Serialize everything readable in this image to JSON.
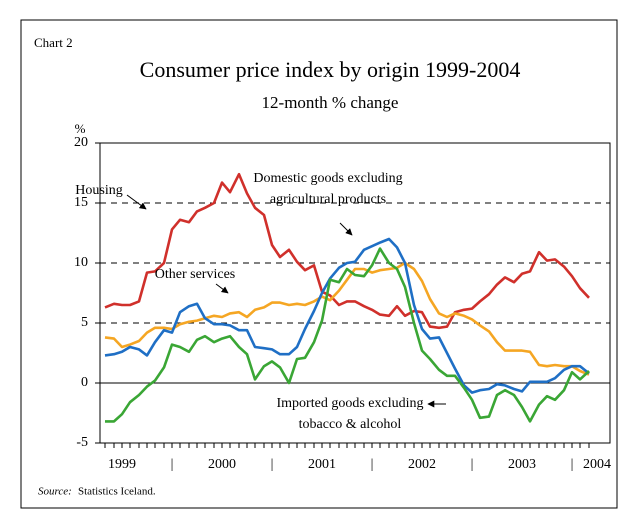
{
  "chart_data": {
    "type": "line",
    "chart_label": "Chart 2",
    "title": "Consumer price index by origin 1999-2004",
    "subtitle": "12-month % change",
    "y_label": "%",
    "source_label": "Source:",
    "source": "Statistics Iceland.",
    "xlim": [
      1999.28,
      2004.38
    ],
    "ylim": [
      -5,
      20
    ],
    "yticks": [
      -5,
      0,
      5,
      10,
      15,
      20
    ],
    "grid": true,
    "xticks": [
      {
        "value": 1999.5,
        "label": "1999"
      },
      {
        "value": 2000,
        "label": "|"
      },
      {
        "value": 2000.5,
        "label": "2000"
      },
      {
        "value": 2001,
        "label": "|"
      },
      {
        "value": 2001.5,
        "label": "2001"
      },
      {
        "value": 2002,
        "label": "|"
      },
      {
        "value": 2002.5,
        "label": "2002"
      },
      {
        "value": 2003,
        "label": "|"
      },
      {
        "value": 2003.5,
        "label": "2003"
      },
      {
        "value": 2004,
        "label": "|"
      },
      {
        "value": 2004.25,
        "label": "2004"
      }
    ],
    "x": [
      1999.33,
      1999.42,
      1999.5,
      1999.58,
      1999.67,
      1999.75,
      1999.83,
      1999.92,
      2000.0,
      2000.08,
      2000.17,
      2000.25,
      2000.33,
      2000.42,
      2000.5,
      2000.58,
      2000.67,
      2000.75,
      2000.83,
      2000.92,
      2001.0,
      2001.08,
      2001.17,
      2001.25,
      2001.33,
      2001.42,
      2001.5,
      2001.58,
      2001.67,
      2001.75,
      2001.83,
      2001.92,
      2002.0,
      2002.08,
      2002.17,
      2002.25,
      2002.33,
      2002.42,
      2002.5,
      2002.58,
      2002.67,
      2002.75,
      2002.83,
      2002.92,
      2003.0,
      2003.08,
      2003.17,
      2003.25,
      2003.33,
      2003.42,
      2003.5,
      2003.58,
      2003.67,
      2003.75,
      2003.83,
      2003.92,
      2004.0,
      2004.08,
      2004.17
    ],
    "series": [
      {
        "name": "Housing",
        "color": "#d0302b",
        "values": [
          6.3,
          6.6,
          6.5,
          6.5,
          6.8,
          9.2,
          9.3,
          10.0,
          12.8,
          13.6,
          13.4,
          14.3,
          14.6,
          15.0,
          16.7,
          15.9,
          17.4,
          15.8,
          14.6,
          14.0,
          11.5,
          10.5,
          11.1,
          10.1,
          9.4,
          9.8,
          7.6,
          7.3,
          6.5,
          6.8,
          6.8,
          6.4,
          6.1,
          5.7,
          5.6,
          6.4,
          5.6,
          6.0,
          5.9,
          4.7,
          4.6,
          4.7,
          5.9,
          6.1,
          6.2,
          6.8,
          7.4,
          8.2,
          8.8,
          8.4,
          9.1,
          9.3,
          10.9,
          10.2,
          10.3,
          9.7,
          8.9,
          7.9,
          7.1
        ]
      },
      {
        "name": "Other services",
        "color": "#f5a623",
        "values": [
          3.8,
          3.7,
          3.0,
          3.2,
          3.5,
          4.2,
          4.6,
          4.6,
          4.5,
          4.9,
          5.1,
          5.2,
          5.4,
          5.6,
          5.5,
          5.8,
          5.9,
          5.5,
          6.1,
          6.3,
          6.7,
          6.7,
          6.5,
          6.6,
          6.5,
          6.8,
          7.2,
          6.9,
          7.7,
          8.6,
          9.5,
          9.5,
          9.2,
          9.4,
          9.5,
          9.6,
          10.0,
          9.5,
          8.5,
          7.0,
          5.8,
          5.5,
          5.8,
          5.6,
          5.3,
          4.8,
          4.3,
          3.4,
          2.7,
          2.7,
          2.7,
          2.6,
          1.5,
          1.4,
          1.5,
          1.4,
          1.4,
          1.0,
          0.7
        ]
      },
      {
        "name": "Domestic goods excluding agricultural products",
        "color": "#1f6fc5",
        "values": [
          2.3,
          2.4,
          2.6,
          3.0,
          2.8,
          2.3,
          3.4,
          4.4,
          4.2,
          5.9,
          6.4,
          6.6,
          5.4,
          4.9,
          4.9,
          4.8,
          4.4,
          4.4,
          3.0,
          2.9,
          2.8,
          2.4,
          2.4,
          3.0,
          4.5,
          6.0,
          7.5,
          8.7,
          9.6,
          10.0,
          10.1,
          11.1,
          11.4,
          11.7,
          12.0,
          11.3,
          10.0,
          6.5,
          4.5,
          3.7,
          3.8,
          2.5,
          1.2,
          -0.2,
          -0.8,
          -0.6,
          -0.5,
          -0.1,
          -0.2,
          -0.5,
          -0.7,
          0.1,
          0.1,
          0.1,
          0.4,
          1.1,
          1.4,
          1.4,
          0.8
        ]
      },
      {
        "name": "Imported goods excluding tobacco & alcohol",
        "color": "#3aa635",
        "values": [
          -3.2,
          -3.2,
          -2.6,
          -1.6,
          -1.0,
          -0.3,
          0.2,
          1.3,
          3.2,
          3.0,
          2.6,
          3.6,
          3.9,
          3.4,
          3.7,
          3.9,
          3.0,
          2.4,
          0.3,
          1.4,
          1.8,
          1.3,
          0.0,
          2.0,
          2.1,
          3.4,
          5.2,
          8.6,
          8.4,
          9.5,
          9.0,
          8.9,
          9.8,
          11.2,
          10.0,
          9.5,
          8.0,
          5.0,
          2.7,
          2.0,
          1.1,
          0.6,
          0.6,
          -0.4,
          -1.4,
          -2.9,
          -2.8,
          -1.0,
          -0.6,
          -1.0,
          -2.0,
          -3.2,
          -1.8,
          -1.1,
          -1.4,
          -0.6,
          0.9,
          0.3,
          1.0
        ]
      }
    ]
  }
}
